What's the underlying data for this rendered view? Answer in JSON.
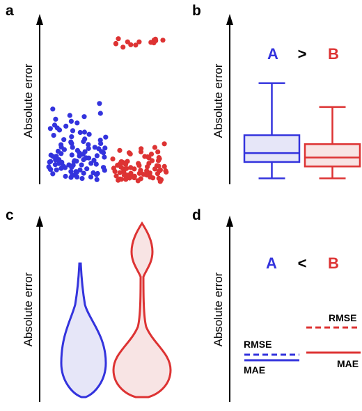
{
  "colors": {
    "A": "#3333dd",
    "B": "#dd3333",
    "A_fill": "#e6e6f8",
    "B_fill": "#f8e4e4",
    "axis": "#000000"
  },
  "chart_data": [
    {
      "panel": "a",
      "type": "scatter",
      "ylabel": "Absolute error",
      "series": [
        {
          "name": "A",
          "color": "blue",
          "y": [
            0.52,
            0.48,
            0.45,
            0.44,
            0.43,
            0.42,
            0.4,
            0.39,
            0.38,
            0.37,
            0.36,
            0.35,
            0.34,
            0.33,
            0.32,
            0.31,
            0.3,
            0.3,
            0.29,
            0.28,
            0.27,
            0.27,
            0.26,
            0.25,
            0.25,
            0.24,
            0.24,
            0.23,
            0.23,
            0.22,
            0.22,
            0.21,
            0.21,
            0.2,
            0.2,
            0.2,
            0.19,
            0.19,
            0.18,
            0.18,
            0.18,
            0.17,
            0.17,
            0.16,
            0.16,
            0.16,
            0.15,
            0.15,
            0.15,
            0.14,
            0.14,
            0.14,
            0.13,
            0.13,
            0.13,
            0.12,
            0.12,
            0.12,
            0.11,
            0.11,
            0.11,
            0.1,
            0.1,
            0.1,
            0.09,
            0.09,
            0.09,
            0.08,
            0.08,
            0.08,
            0.07,
            0.07,
            0.07,
            0.06,
            0.06,
            0.06,
            0.05,
            0.05,
            0.04,
            0.04,
            0.21,
            0.19,
            0.17,
            0.15,
            0.13,
            0.11,
            0.24,
            0.27,
            0.33,
            0.36,
            0.29,
            0.26,
            0.23,
            0.18,
            0.14,
            0.12,
            0.09,
            0.07,
            0.05,
            0.03
          ]
        },
        {
          "name": "B",
          "color": "red",
          "y": [
            0.26,
            0.24,
            0.23,
            0.22,
            0.21,
            0.2,
            0.19,
            0.19,
            0.18,
            0.17,
            0.17,
            0.16,
            0.16,
            0.15,
            0.15,
            0.14,
            0.14,
            0.13,
            0.13,
            0.13,
            0.12,
            0.12,
            0.12,
            0.11,
            0.11,
            0.11,
            0.1,
            0.1,
            0.1,
            0.1,
            0.09,
            0.09,
            0.09,
            0.09,
            0.08,
            0.08,
            0.08,
            0.08,
            0.07,
            0.07,
            0.07,
            0.07,
            0.06,
            0.06,
            0.06,
            0.06,
            0.05,
            0.05,
            0.05,
            0.05,
            0.04,
            0.04,
            0.04,
            0.04,
            0.03,
            0.03,
            0.03,
            0.03,
            0.02,
            0.02,
            0.14,
            0.12,
            0.1,
            0.08,
            0.06,
            0.05,
            0.04,
            0.03,
            0.11,
            0.09,
            0.07,
            0.13,
            0.15,
            0.18,
            0.21,
            0.93,
            0.92,
            0.91,
            0.9,
            0.89,
            0.88,
            0.93,
            0.92,
            0.91,
            0.9,
            0.89,
            0.9,
            0.92,
            0.91
          ]
        }
      ]
    },
    {
      "panel": "b",
      "type": "box",
      "ylabel": "Absolute error",
      "annotation": {
        "left": "A",
        "op": ">",
        "right": "B"
      },
      "series": [
        {
          "name": "A",
          "whisker_low": 0.04,
          "q1": 0.15,
          "median": 0.21,
          "q3": 0.33,
          "whisker_high": 0.68
        },
        {
          "name": "B",
          "whisker_low": 0.04,
          "q1": 0.12,
          "median": 0.18,
          "q3": 0.27,
          "whisker_high": 0.52
        }
      ]
    },
    {
      "panel": "c",
      "type": "violin",
      "ylabel": "Absolute error",
      "series": [
        {
          "name": "A",
          "min": 0.02,
          "max": 0.77,
          "mode": 0.23
        },
        {
          "name": "B",
          "min": 0.02,
          "max": 1.0,
          "modes": [
            0.17,
            0.86
          ]
        }
      ]
    },
    {
      "panel": "d",
      "type": "line",
      "ylabel": "Absolute error",
      "annotation": {
        "left": "A",
        "op": "<",
        "right": "B"
      },
      "series": [
        {
          "name": "A",
          "RMSE": 0.25,
          "MAE": 0.21
        },
        {
          "name": "B",
          "RMSE": 0.38,
          "MAE": 0.28
        }
      ],
      "labels": {
        "rmse": "RMSE",
        "mae": "MAE"
      }
    }
  ]
}
